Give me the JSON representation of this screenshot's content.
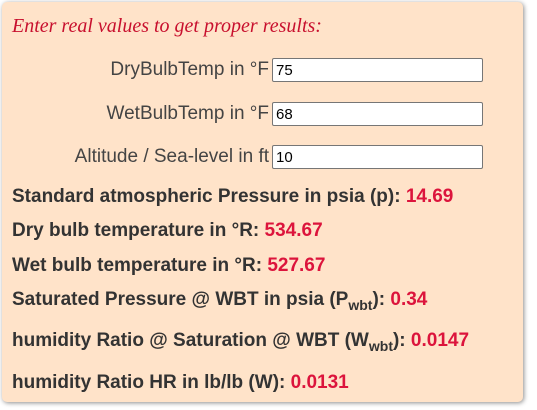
{
  "hint": "Enter real values to get proper results:",
  "inputs": [
    {
      "label": "DryBulbTemp in °F",
      "value": "75"
    },
    {
      "label": "WetBulbTemp in °F",
      "value": "68"
    },
    {
      "label": "Altitude / Sea-level in ft",
      "value": "10"
    }
  ],
  "results": {
    "pressure": {
      "label": "Standard atmospheric Pressure in psia (p):",
      "value": "14.69"
    },
    "dry_bulb_r": {
      "label": "Dry bulb temperature in °R:",
      "value": "534.67"
    },
    "wet_bulb_r": {
      "label": "Wet bulb temperature in °R:",
      "value": "527.67"
    },
    "sat_pressure": {
      "label_pre": "Saturated Pressure @ WBT in psia (P",
      "label_sub": "wbt",
      "label_post": "):",
      "value": "0.34"
    },
    "hum_ratio_sat": {
      "label_pre": "humidity Ratio @ Saturation @ WBT (W",
      "label_sub": "wbt",
      "label_post": "):",
      "value": "0.0147"
    },
    "hum_ratio": {
      "label": "humidity Ratio HR in lb/lb (W):",
      "value": "0.0131"
    }
  },
  "colors": {
    "panel_bg": "#ffe3c9",
    "accent_red": "#dc143c",
    "hint_red": "#c8102e"
  }
}
